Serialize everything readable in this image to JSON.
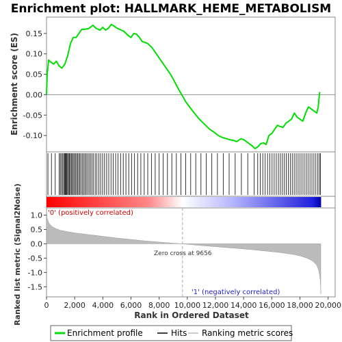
{
  "chart_data": {
    "type": "line",
    "title": "Enrichment plot: HALLMARK_HEME_METABOLISM",
    "colors": {
      "es_line": "#00dd00",
      "hits": "#000000",
      "metric_fill": "#bbbbbb",
      "zero_cross_line": "#aaaaaa",
      "positive": "#ff0000",
      "negative": "#0000cc"
    },
    "enrichment_panel": {
      "ylabel": "Enrichment score (ES)",
      "ylim": [
        -0.14,
        0.19
      ],
      "yticks": [
        -0.1,
        -0.05,
        0.0,
        0.05,
        0.1,
        0.15
      ],
      "ytick_labels": [
        "-0.10",
        "-0.05",
        "0.00",
        "0.05",
        "0.10",
        "0.15"
      ],
      "series": [
        {
          "name": "Enrichment profile",
          "x": [
            0,
            50,
            150,
            300,
            500,
            700,
            900,
            1100,
            1300,
            1500,
            1700,
            1900,
            2100,
            2300,
            2500,
            2700,
            3000,
            3300,
            3500,
            3800,
            4000,
            4200,
            4400,
            4600,
            4800,
            5000,
            5200,
            5500,
            5800,
            6000,
            6200,
            6400,
            6600,
            6800,
            7000,
            7200,
            7500,
            7800,
            8000,
            8200,
            8500,
            8800,
            9000,
            9200,
            9400,
            9656,
            9900,
            10200,
            10500,
            10800,
            11000,
            11300,
            11600,
            11900,
            12200,
            12500,
            12800,
            13000,
            13300,
            13500,
            13800,
            14000,
            14200,
            14400,
            14600,
            14800,
            15000,
            15200,
            15400,
            15600,
            15800,
            16000,
            16200,
            16400,
            16600,
            16800,
            17000,
            17200,
            17400,
            17600,
            17800,
            18000,
            18200,
            18400,
            18600,
            18800,
            19000,
            19200,
            19300,
            19350,
            19400,
            19450
          ],
          "y": [
            0.0,
            0.05,
            0.085,
            0.08,
            0.075,
            0.082,
            0.07,
            0.065,
            0.075,
            0.095,
            0.125,
            0.14,
            0.14,
            0.15,
            0.16,
            0.16,
            0.162,
            0.17,
            0.163,
            0.158,
            0.165,
            0.158,
            0.163,
            0.172,
            0.168,
            0.163,
            0.16,
            0.155,
            0.145,
            0.14,
            0.15,
            0.148,
            0.14,
            0.13,
            0.128,
            0.125,
            0.115,
            0.1,
            0.09,
            0.08,
            0.065,
            0.05,
            0.038,
            0.025,
            0.012,
            -0.003,
            -0.018,
            -0.032,
            -0.045,
            -0.058,
            -0.065,
            -0.075,
            -0.085,
            -0.092,
            -0.1,
            -0.105,
            -0.108,
            -0.11,
            -0.112,
            -0.115,
            -0.108,
            -0.11,
            -0.115,
            -0.12,
            -0.125,
            -0.132,
            -0.128,
            -0.12,
            -0.118,
            -0.122,
            -0.1,
            -0.095,
            -0.085,
            -0.075,
            -0.078,
            -0.08,
            -0.07,
            -0.065,
            -0.06,
            -0.045,
            -0.055,
            -0.06,
            -0.065,
            -0.045,
            -0.03,
            -0.035,
            -0.04,
            -0.045,
            -0.03,
            -0.01,
            0.005,
            0.005
          ]
        }
      ]
    },
    "hits_panel": {
      "name": "Hits",
      "hit_ranks": [
        100,
        350,
        620,
        900,
        980,
        1060,
        1150,
        1220,
        1280,
        1330,
        1390,
        1440,
        1500,
        1560,
        1620,
        1690,
        1760,
        1830,
        1900,
        1980,
        2050,
        2130,
        2210,
        2290,
        2370,
        2460,
        2550,
        2640,
        2730,
        2820,
        2920,
        3020,
        3120,
        3230,
        3340,
        3460,
        3580,
        3710,
        3840,
        3980,
        4120,
        4270,
        4420,
        4580,
        4740,
        4910,
        5080,
        5260,
        5450,
        5640,
        5840,
        6040,
        6250,
        6470,
        6700,
        6940,
        7190,
        7450,
        7720,
        8000,
        8290,
        8590,
        8900,
        9220,
        9550,
        9890,
        10240,
        10600,
        10970,
        11350,
        11740,
        12140,
        12550,
        12970,
        13400,
        13840,
        14290,
        14750,
        15000,
        15180,
        15360,
        15530,
        15700,
        15860,
        16020,
        16170,
        16320,
        16470,
        16610,
        16750,
        16890,
        17030,
        17170,
        17310,
        17450,
        17590,
        17730,
        17870,
        18010,
        18150,
        18290,
        18430,
        18570,
        18710,
        18850,
        18990,
        19130,
        19270,
        19380,
        19450
      ]
    },
    "metric_panel": {
      "name": "Ranking metric scores",
      "ylabel": "Ranked list metric (Signal2Noise)",
      "ylim": [
        -1.85,
        1.25
      ],
      "yticks": [
        -1.5,
        -1.0,
        -0.5,
        0.0,
        0.5,
        1.0
      ],
      "ytick_labels": [
        "-1.5",
        "-1.0",
        "-0.5",
        "0.0",
        "0.5",
        "1.0"
      ],
      "x": [
        0,
        30,
        100,
        200,
        400,
        700,
        1000,
        1500,
        2000,
        3000,
        4000,
        5000,
        6000,
        7000,
        8000,
        9000,
        9656,
        10500,
        11500,
        12500,
        13500,
        14500,
        15500,
        16500,
        17500,
        18000,
        18500,
        18900,
        19200,
        19350,
        19450,
        19480
      ],
      "values": [
        1.2,
        0.95,
        0.8,
        0.7,
        0.6,
        0.52,
        0.47,
        0.42,
        0.38,
        0.32,
        0.26,
        0.2,
        0.15,
        0.1,
        0.06,
        0.02,
        0.0,
        -0.04,
        -0.08,
        -0.12,
        -0.16,
        -0.2,
        -0.25,
        -0.3,
        -0.37,
        -0.42,
        -0.5,
        -0.6,
        -0.75,
        -0.95,
        -1.3,
        -1.75
      ],
      "zero_cross_label": "Zero cross at 9656",
      "positive_label": "'0' (positively correlated)",
      "negative_label": "'1' (negatively correlated)"
    },
    "xlabel": "Rank in Ordered Dataset",
    "xlim": [
      0,
      20500
    ],
    "xticks": [
      0,
      2000,
      4000,
      6000,
      8000,
      10000,
      12000,
      14000,
      16000,
      18000,
      20000
    ],
    "xtick_labels": [
      "0",
      "2,000",
      "4,000",
      "6,000",
      "8,000",
      "10,000",
      "12,000",
      "14,000",
      "16,000",
      "18,000",
      "20,000"
    ],
    "total_ranks": 19500,
    "legend": {
      "placement": "bottom",
      "entries": [
        {
          "label": "Enrichment profile",
          "color": "#00dd00"
        },
        {
          "label": "Hits",
          "color": "#000000"
        },
        {
          "label": "Ranking metric scores",
          "color": "#bbbbbb"
        }
      ]
    }
  }
}
